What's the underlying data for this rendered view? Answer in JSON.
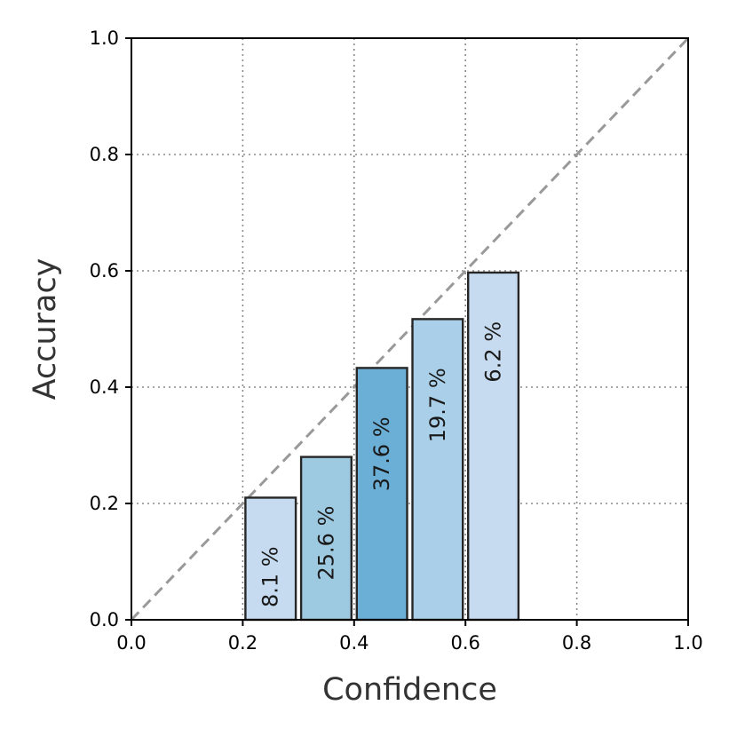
{
  "chart_data": {
    "type": "bar",
    "xlabel": "Confidence",
    "ylabel": "Accuracy",
    "xlim": [
      0.0,
      1.0
    ],
    "ylim": [
      0.0,
      1.0
    ],
    "grid": true,
    "x_ticks": [
      "0.0",
      "0.2",
      "0.4",
      "0.6",
      "0.8",
      "1.0"
    ],
    "y_ticks": [
      "0.0",
      "0.2",
      "0.4",
      "0.6",
      "0.8",
      "1.0"
    ],
    "reference_line": "diagonal",
    "bars": [
      {
        "x0": 0.2,
        "x1": 0.3,
        "value": 0.21,
        "label": "8.1 %",
        "color": "#c6dbef"
      },
      {
        "x0": 0.3,
        "x1": 0.4,
        "value": 0.28,
        "label": "25.6 %",
        "color": "#9ecae1"
      },
      {
        "x0": 0.4,
        "x1": 0.5,
        "value": 0.433,
        "label": "37.6 %",
        "color": "#6baed6"
      },
      {
        "x0": 0.5,
        "x1": 0.6,
        "value": 0.517,
        "label": "19.7 %",
        "color": "#a9d0e8"
      },
      {
        "x0": 0.6,
        "x1": 0.7,
        "value": 0.597,
        "label": "6.2 %",
        "color": "#c6dbef"
      }
    ]
  }
}
